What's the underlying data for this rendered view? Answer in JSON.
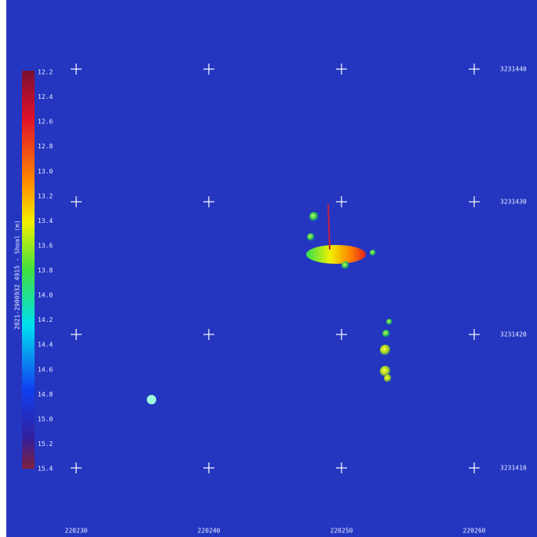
{
  "colorbar": {
    "title": "2021-2900932 4915 - Shoal (m)",
    "labels": [
      "12.2",
      "12.4",
      "12.6",
      "12.8",
      "13.0",
      "13.2",
      "13.4",
      "13.6",
      "13.8",
      "14.0",
      "14.2",
      "14.4",
      "14.6",
      "14.8",
      "15.0",
      "15.2",
      "15.4"
    ]
  },
  "grid": {
    "x_labels": [
      "220230",
      "220240",
      "220250",
      "220260"
    ],
    "y_labels": [
      "3231440",
      "3231430",
      "3231420",
      "3231410"
    ]
  }
}
